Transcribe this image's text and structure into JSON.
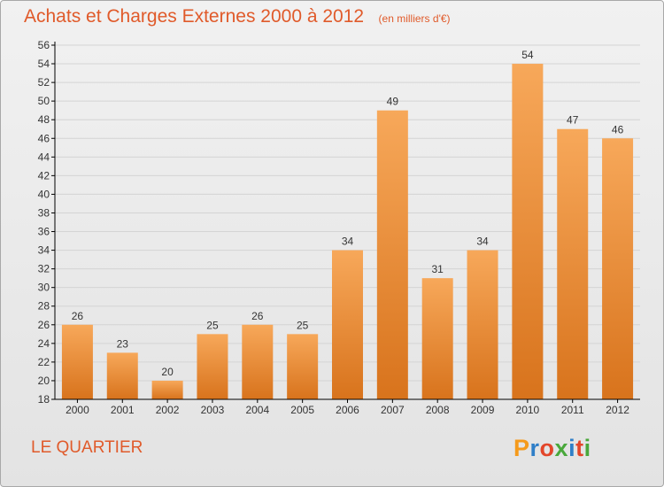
{
  "title": "Achats et Charges Externes 2000 à 2012",
  "subtitle": "(en milliers d'€)",
  "commune": "LE QUARTIER",
  "brand": {
    "letters": [
      "P",
      "r",
      "o",
      "x",
      "i",
      "t",
      "i"
    ],
    "colors": [
      "#f59a1b",
      "#2f7fc8",
      "#e3462a",
      "#49a83b",
      "#2f7fc8",
      "#e3462a",
      "#49a83b"
    ]
  },
  "chart_data": {
    "type": "bar",
    "categories": [
      "2000",
      "2001",
      "2002",
      "2003",
      "2004",
      "2005",
      "2006",
      "2007",
      "2008",
      "2009",
      "2010",
      "2011",
      "2012"
    ],
    "values": [
      26,
      23,
      20,
      25,
      26,
      25,
      34,
      49,
      31,
      34,
      54,
      47,
      46
    ],
    "title": "Achats et Charges Externes 2000 à 2012",
    "ylim": [
      18,
      56
    ],
    "yticks": [
      18,
      20,
      22,
      24,
      26,
      28,
      30,
      32,
      34,
      36,
      38,
      40,
      42,
      44,
      46,
      48,
      50,
      52,
      54,
      56
    ],
    "grid": true,
    "colors": {
      "bar_light": "#f7a85a",
      "bar_dark": "#d8731c",
      "axis": "#000000",
      "grid": "#d4d4d4",
      "text": "#333333"
    }
  }
}
